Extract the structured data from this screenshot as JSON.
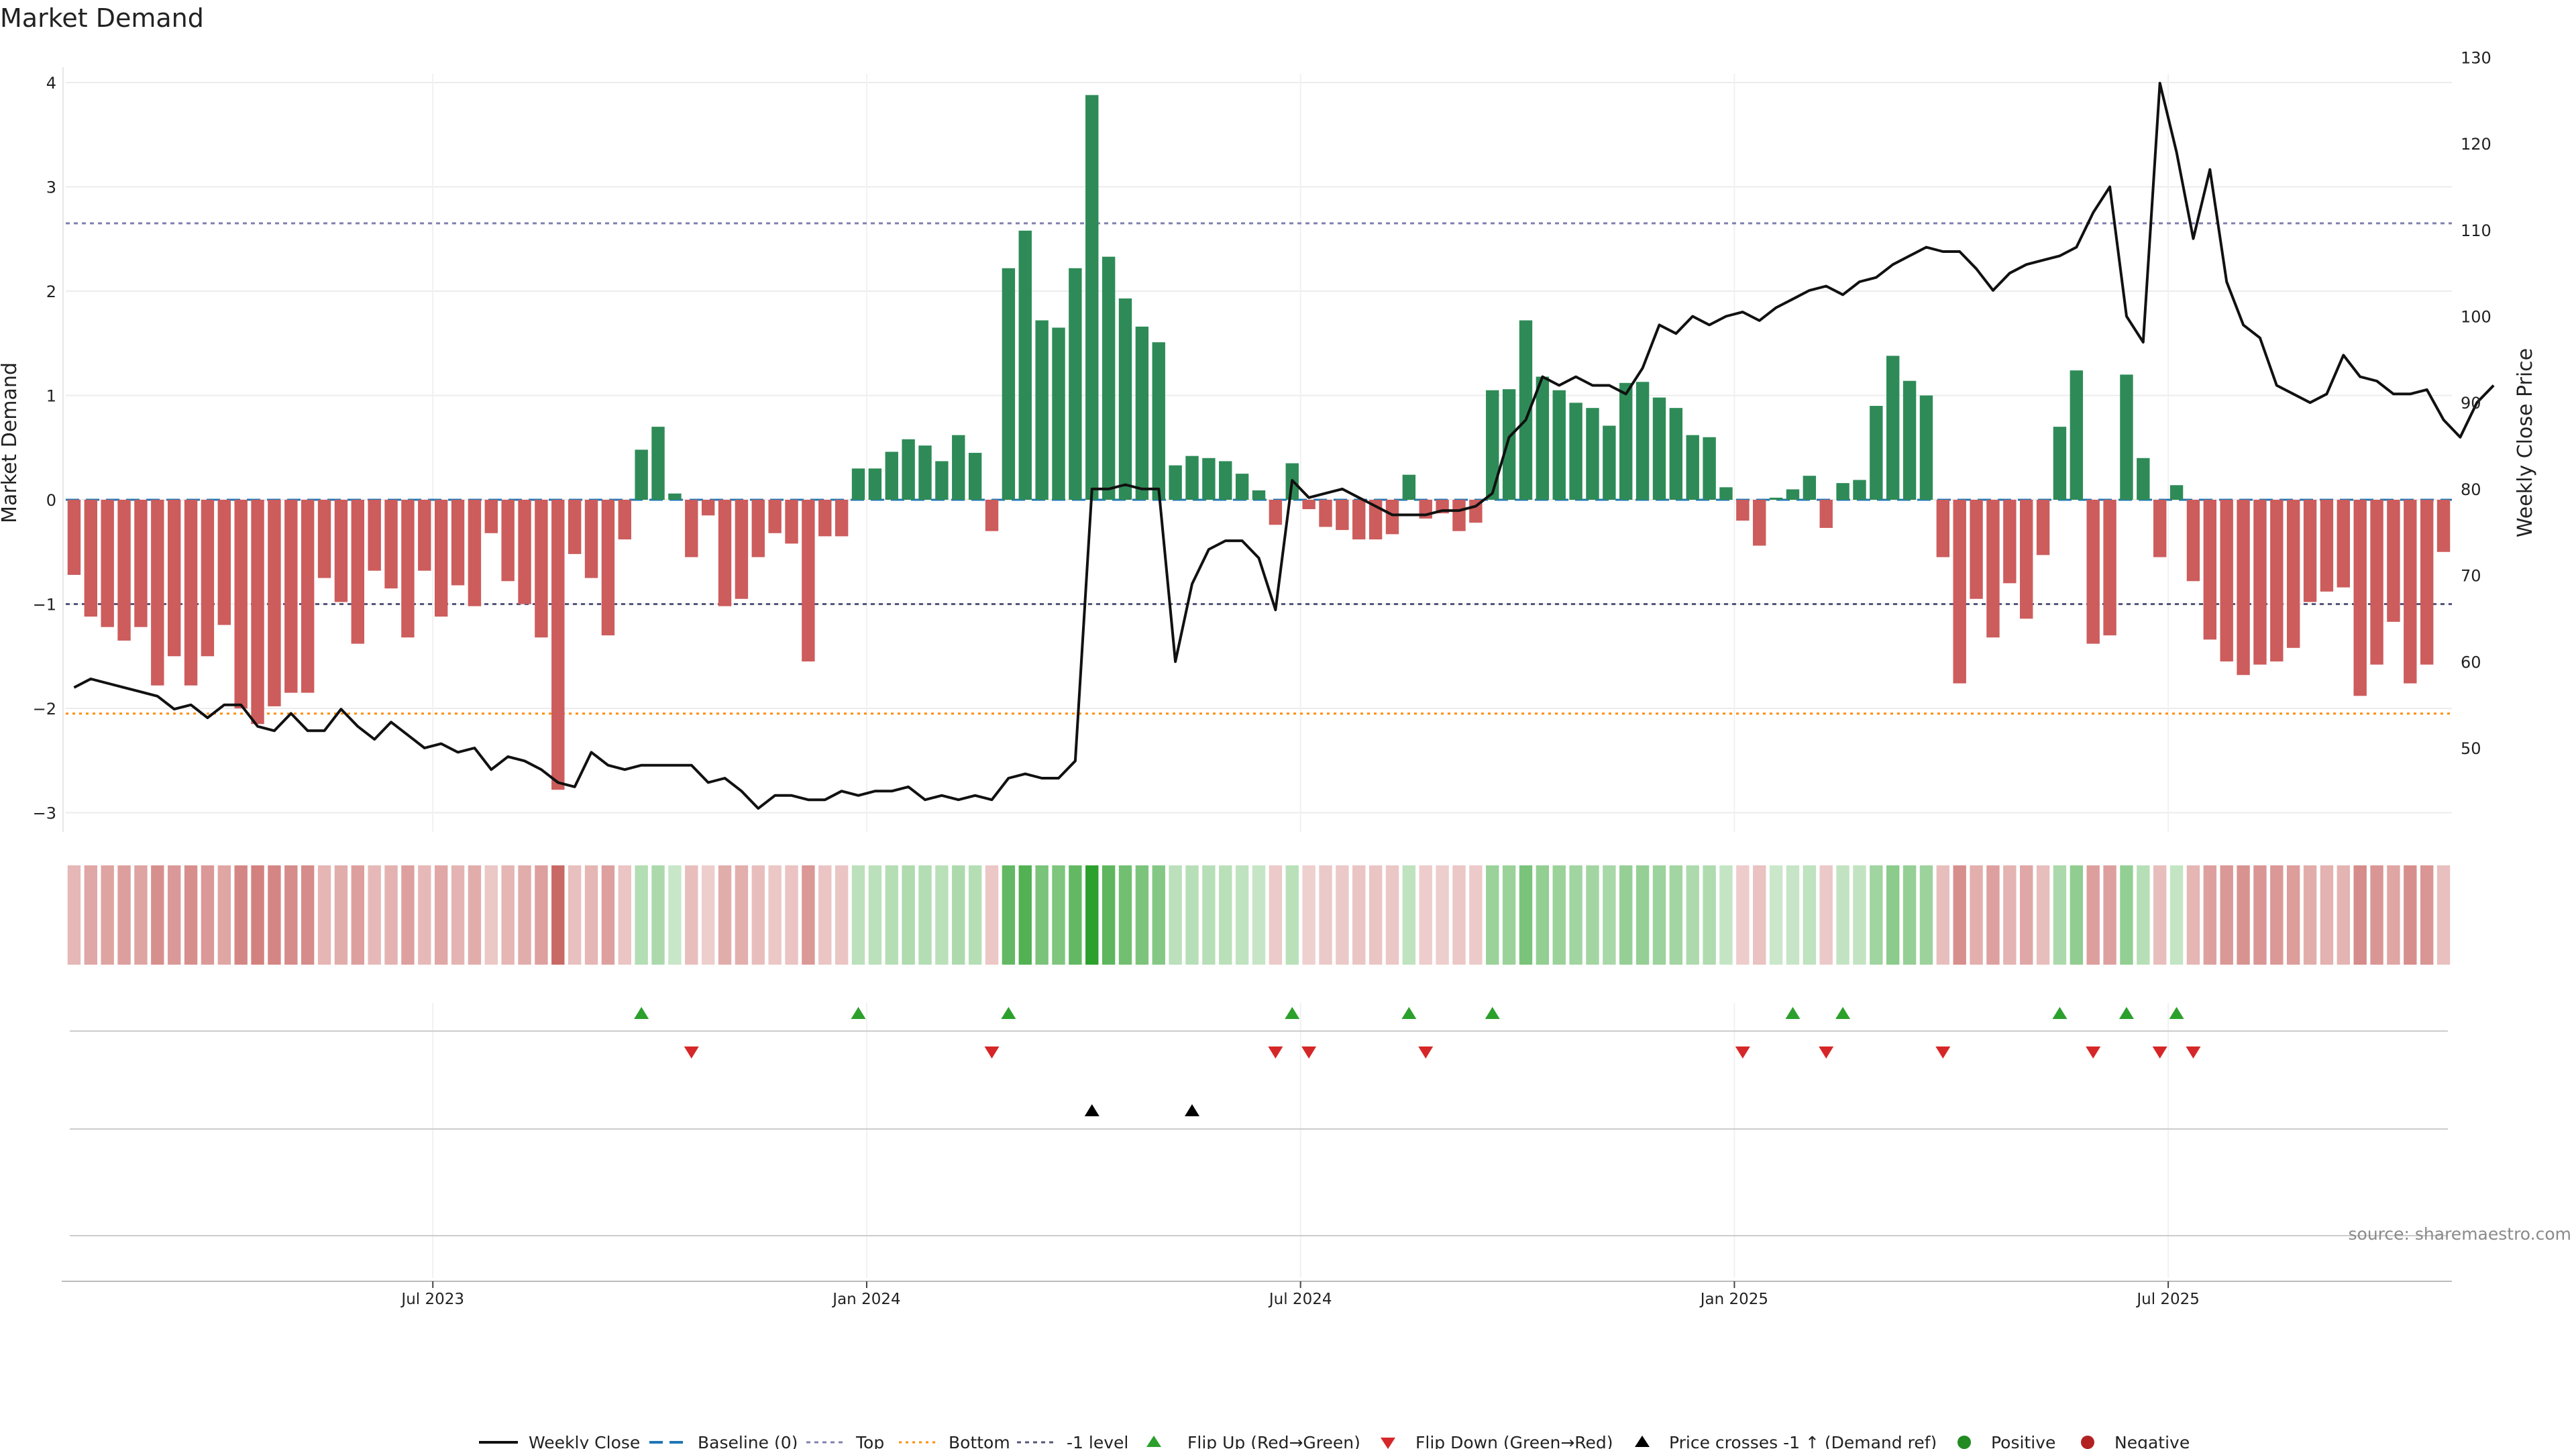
{
  "chart_data": {
    "type": "bar",
    "title": "Market Demand",
    "ylabel_left": "Market Demand",
    "ylabel_right": "Weekly Close Price",
    "ylim_left": [
      -3.3,
      4.2
    ],
    "yticks_left": [
      4,
      3,
      2,
      1,
      0,
      -1,
      -2,
      -3
    ],
    "ylim_right": [
      40,
      130
    ],
    "yticks_right": [
      130,
      120,
      110,
      100,
      90,
      80,
      70,
      60,
      50
    ],
    "x_tick_labels": [
      "Jul 2023",
      "Jan 2024",
      "Jul 2024",
      "Jan 2025",
      "Jul 2025"
    ],
    "x_tick_weeks": [
      22,
      48,
      74,
      100,
      126
    ],
    "reference_lines": {
      "top": 2.65,
      "bottom": -2.05,
      "minus_one": -1.0,
      "baseline": 0
    },
    "demand": [
      -0.72,
      -1.12,
      -1.22,
      -1.35,
      -1.22,
      -1.78,
      -1.5,
      -1.78,
      -1.5,
      -1.2,
      -2.0,
      -2.15,
      -1.98,
      -1.85,
      -1.85,
      -0.75,
      -0.98,
      -1.38,
      -0.68,
      -0.85,
      -1.32,
      -0.68,
      -1.12,
      -0.82,
      -1.02,
      -0.32,
      -0.78,
      -1.0,
      -1.32,
      -2.78,
      -0.52,
      -0.75,
      -1.3,
      -0.38,
      0.48,
      0.7,
      0.06,
      -0.55,
      -0.15,
      -1.02,
      -0.95,
      -0.55,
      -0.32,
      -0.42,
      -1.55,
      -0.35,
      -0.35,
      0.3,
      0.3,
      0.46,
      0.58,
      0.52,
      0.37,
      0.62,
      0.45,
      -0.3,
      2.22,
      2.58,
      1.72,
      1.65,
      2.22,
      3.88,
      2.33,
      1.93,
      1.66,
      1.51,
      0.33,
      0.42,
      0.4,
      0.37,
      0.25,
      0.09,
      -0.24,
      0.35,
      -0.09,
      -0.26,
      -0.29,
      -0.38,
      -0.38,
      -0.33,
      0.24,
      -0.18,
      -0.13,
      -0.3,
      -0.22,
      1.05,
      1.06,
      1.72,
      1.18,
      1.05,
      0.93,
      0.88,
      0.71,
      1.12,
      1.13,
      0.98,
      0.88,
      0.62,
      0.6,
      0.12,
      -0.2,
      -0.44,
      0.02,
      0.1,
      0.23,
      -0.27,
      0.16,
      0.19,
      0.9,
      1.38,
      1.14,
      1.0,
      -0.55,
      -1.76,
      -0.95,
      -1.32,
      -0.8,
      -1.14,
      -0.53,
      0.7,
      1.24,
      -1.38,
      -1.3,
      1.2,
      0.4,
      -0.55,
      0.14,
      -0.78,
      -1.34,
      -1.55,
      -1.68,
      -1.58,
      -1.55,
      -1.42,
      -0.98,
      -0.88,
      -0.84,
      -1.88,
      -1.58,
      -1.17,
      -1.76,
      -1.58,
      -0.5
    ],
    "weekly_close": [
      57,
      58,
      57.5,
      57,
      56.5,
      56,
      54.5,
      55,
      53.5,
      55,
      55,
      52.5,
      52,
      54,
      52,
      52,
      54.5,
      52.5,
      51,
      53,
      51.5,
      50,
      50.5,
      49.5,
      50,
      47.5,
      49,
      48.5,
      47.5,
      46,
      45.5,
      49.5,
      48,
      47.5,
      48,
      48,
      48,
      48,
      46,
      46.5,
      45,
      43,
      44.5,
      44.5,
      44,
      44,
      45,
      44.5,
      45,
      45,
      45.5,
      44,
      44.5,
      44,
      44.5,
      44,
      46.5,
      47,
      46.5,
      46.5,
      48.5,
      80,
      80,
      80.5,
      80,
      80,
      60,
      69,
      73,
      74,
      74,
      72,
      66,
      81,
      79,
      79.5,
      80,
      79,
      78,
      77,
      77,
      77,
      77.5,
      77.5,
      78,
      79.5,
      86,
      88,
      93,
      92,
      93,
      92,
      92,
      91,
      94,
      99,
      98,
      100,
      99,
      100,
      100.5,
      99.5,
      101,
      102,
      103,
      103.5,
      102.5,
      104,
      104.5,
      106,
      107,
      108,
      107.5,
      107.5,
      105.5,
      103,
      105,
      106,
      106.5,
      107,
      108,
      112,
      115,
      100,
      97,
      127,
      119,
      109,
      117,
      104,
      99,
      97.5,
      92,
      91,
      90,
      91,
      95.5,
      93,
      92.5,
      91,
      91,
      91.5,
      88,
      86,
      90,
      92
    ],
    "flip_up_weeks": [
      34,
      47,
      56,
      73,
      80,
      85,
      103,
      106,
      119,
      123,
      126
    ],
    "flip_down_weeks": [
      37,
      55,
      72,
      74,
      81,
      100,
      105,
      112,
      121,
      125,
      127
    ],
    "price_cross_weeks": [
      61,
      67
    ],
    "legend": [
      "Weekly Close",
      "Baseline (0)",
      "Top",
      "Bottom",
      "-1 level",
      "Flip Up (Red→Green)",
      "Flip Down (Green→Red)",
      "Price crosses -1 ↑ (Demand ref)",
      "Positive",
      "Negative"
    ],
    "source": "source: sharemaestro.com"
  },
  "colors": {
    "positive": "#2e8b57",
    "negative": "#cd5c5c",
    "close": "#111111",
    "flip_up": "#2ca02c",
    "flip_down": "#d62728",
    "cross": "#000000",
    "top_line": "#8080b0",
    "bottom_line": "#ff8c00",
    "minus_one_line": "#55557a",
    "baseline": "#1f77b4",
    "legend_positive_dot": "#228b22",
    "legend_negative_dot": "#b22222"
  }
}
